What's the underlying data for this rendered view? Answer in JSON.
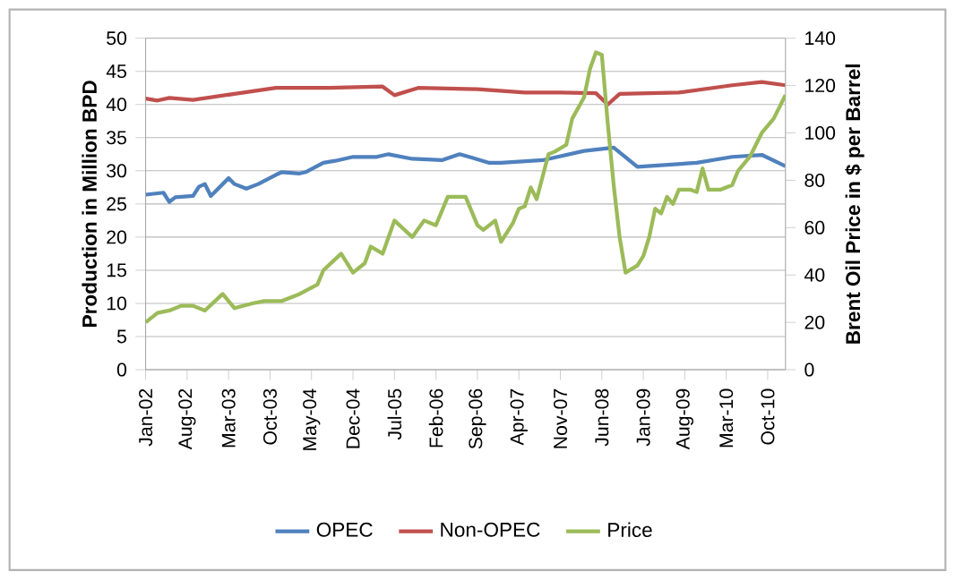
{
  "chart_data": {
    "type": "line",
    "xlabel": null,
    "ylabel": "Production in Million BPD",
    "y2label": "Brent  Oil Price in $ per Barrel",
    "xlim": [
      "2002-01",
      "2011-01"
    ],
    "xticks": [
      {
        "value": "2002-01",
        "label": "Jan-02"
      },
      {
        "value": "2002-08",
        "label": "Aug-02"
      },
      {
        "value": "2003-03",
        "label": "Mar-03"
      },
      {
        "value": "2003-10",
        "label": "Oct-03"
      },
      {
        "value": "2004-05",
        "label": "May-04"
      },
      {
        "value": "2004-12",
        "label": "Dec-04"
      },
      {
        "value": "2005-07",
        "label": "Jul-05"
      },
      {
        "value": "2006-02",
        "label": "Feb-06"
      },
      {
        "value": "2006-09",
        "label": "Sep-06"
      },
      {
        "value": "2007-04",
        "label": "Apr-07"
      },
      {
        "value": "2007-11",
        "label": "Nov-07"
      },
      {
        "value": "2008-06",
        "label": "Jun-08"
      },
      {
        "value": "2009-01",
        "label": "Jan-09"
      },
      {
        "value": "2009-08",
        "label": "Aug-09"
      },
      {
        "value": "2010-03",
        "label": "Mar-10"
      },
      {
        "value": "2010-10",
        "label": "Oct-10"
      }
    ],
    "ylim": [
      0,
      50
    ],
    "yticks": [
      0,
      5,
      10,
      15,
      20,
      25,
      30,
      35,
      40,
      45,
      50
    ],
    "y2lim": [
      0,
      140
    ],
    "y2ticks": [
      0,
      20,
      40,
      60,
      80,
      100,
      120,
      140
    ],
    "grid": "y",
    "legend": "bottom",
    "series": [
      {
        "name": "OPEC",
        "color": "#4f81bd",
        "x": [
          "2002-01",
          "2002-04",
          "2002-05",
          "2002-06",
          "2002-09",
          "2002-10",
          "2002-11",
          "2002-12",
          "2003-03",
          "2003-04",
          "2003-06",
          "2003-08",
          "2003-11",
          "2003-12",
          "2004-03",
          "2004-04",
          "2004-07",
          "2004-09",
          "2004-12",
          "2005-04",
          "2005-06",
          "2005-10",
          "2006-03",
          "2006-06",
          "2006-08",
          "2006-11",
          "2007-01",
          "2007-08",
          "2008-03",
          "2008-08",
          "2008-12",
          "2009-10",
          "2010-04",
          "2010-09",
          "2011-01"
        ],
        "values": [
          26.4,
          26.7,
          25.3,
          26,
          26.2,
          27.6,
          28,
          26.2,
          28.9,
          28,
          27.3,
          28,
          29.4,
          29.8,
          29.6,
          29.8,
          31.2,
          31.5,
          32.1,
          32.1,
          32.5,
          31.8,
          31.6,
          32.5,
          32,
          31.2,
          31.2,
          31.6,
          33,
          33.5,
          30.6,
          31.2,
          32.1,
          32.4,
          30.7
        ]
      },
      {
        "name": "Non-OPEC",
        "color": "#c0504d",
        "x": [
          "2002-01",
          "2002-03",
          "2002-05",
          "2002-09",
          "2003-04",
          "2003-11",
          "2004-08",
          "2005-05",
          "2005-07",
          "2005-11",
          "2006-09",
          "2007-05",
          "2007-11",
          "2008-05",
          "2008-07",
          "2008-09",
          "2009-07",
          "2010-04",
          "2010-09",
          "2011-01"
        ],
        "values": [
          40.9,
          40.6,
          41,
          40.7,
          41.6,
          42.5,
          42.5,
          42.7,
          41.4,
          42.5,
          42.3,
          41.8,
          41.8,
          41.7,
          40,
          41.6,
          41.8,
          42.9,
          43.4,
          42.9
        ]
      },
      {
        "name": "Price",
        "color": "#9bbb59",
        "axis": "y2",
        "x": [
          "2002-01",
          "2002-03",
          "2002-05",
          "2002-07",
          "2002-09",
          "2002-11",
          "2003-02",
          "2003-04",
          "2003-07",
          "2003-09",
          "2003-12",
          "2004-03",
          "2004-06",
          "2004-07",
          "2004-10",
          "2004-12",
          "2005-02",
          "2005-03",
          "2005-05",
          "2005-07",
          "2005-10",
          "2005-12",
          "2006-02",
          "2006-04",
          "2006-06",
          "2006-07",
          "2006-09",
          "2006-10",
          "2006-12",
          "2007-01",
          "2007-03",
          "2007-04",
          "2007-05",
          "2007-06",
          "2007-07",
          "2007-09",
          "2007-10",
          "2007-12",
          "2008-01",
          "2008-03",
          "2008-04",
          "2008-05",
          "2008-06",
          "2008-07",
          "2008-08",
          "2008-09",
          "2008-10",
          "2008-12",
          "2009-01",
          "2009-02",
          "2009-03",
          "2009-04",
          "2009-05",
          "2009-06",
          "2009-07",
          "2009-09",
          "2009-10",
          "2009-11",
          "2009-12",
          "2010-02",
          "2010-04",
          "2010-05",
          "2010-07",
          "2010-09",
          "2010-11",
          "2011-01"
        ],
        "values": [
          20,
          24,
          25,
          27,
          27,
          25,
          32,
          26,
          28,
          29,
          29,
          32,
          36,
          42,
          49,
          41,
          45,
          52,
          49,
          63,
          56,
          63,
          61,
          73,
          73,
          73,
          61,
          59,
          63,
          54,
          62,
          68,
          69,
          77,
          72,
          91,
          92,
          95,
          106,
          115,
          127,
          134,
          133,
          104,
          78,
          56,
          41,
          44,
          48,
          56,
          68,
          66,
          73,
          70,
          76,
          76,
          75,
          85,
          76,
          76,
          78,
          84,
          90,
          100,
          106,
          116
        ]
      }
    ]
  }
}
